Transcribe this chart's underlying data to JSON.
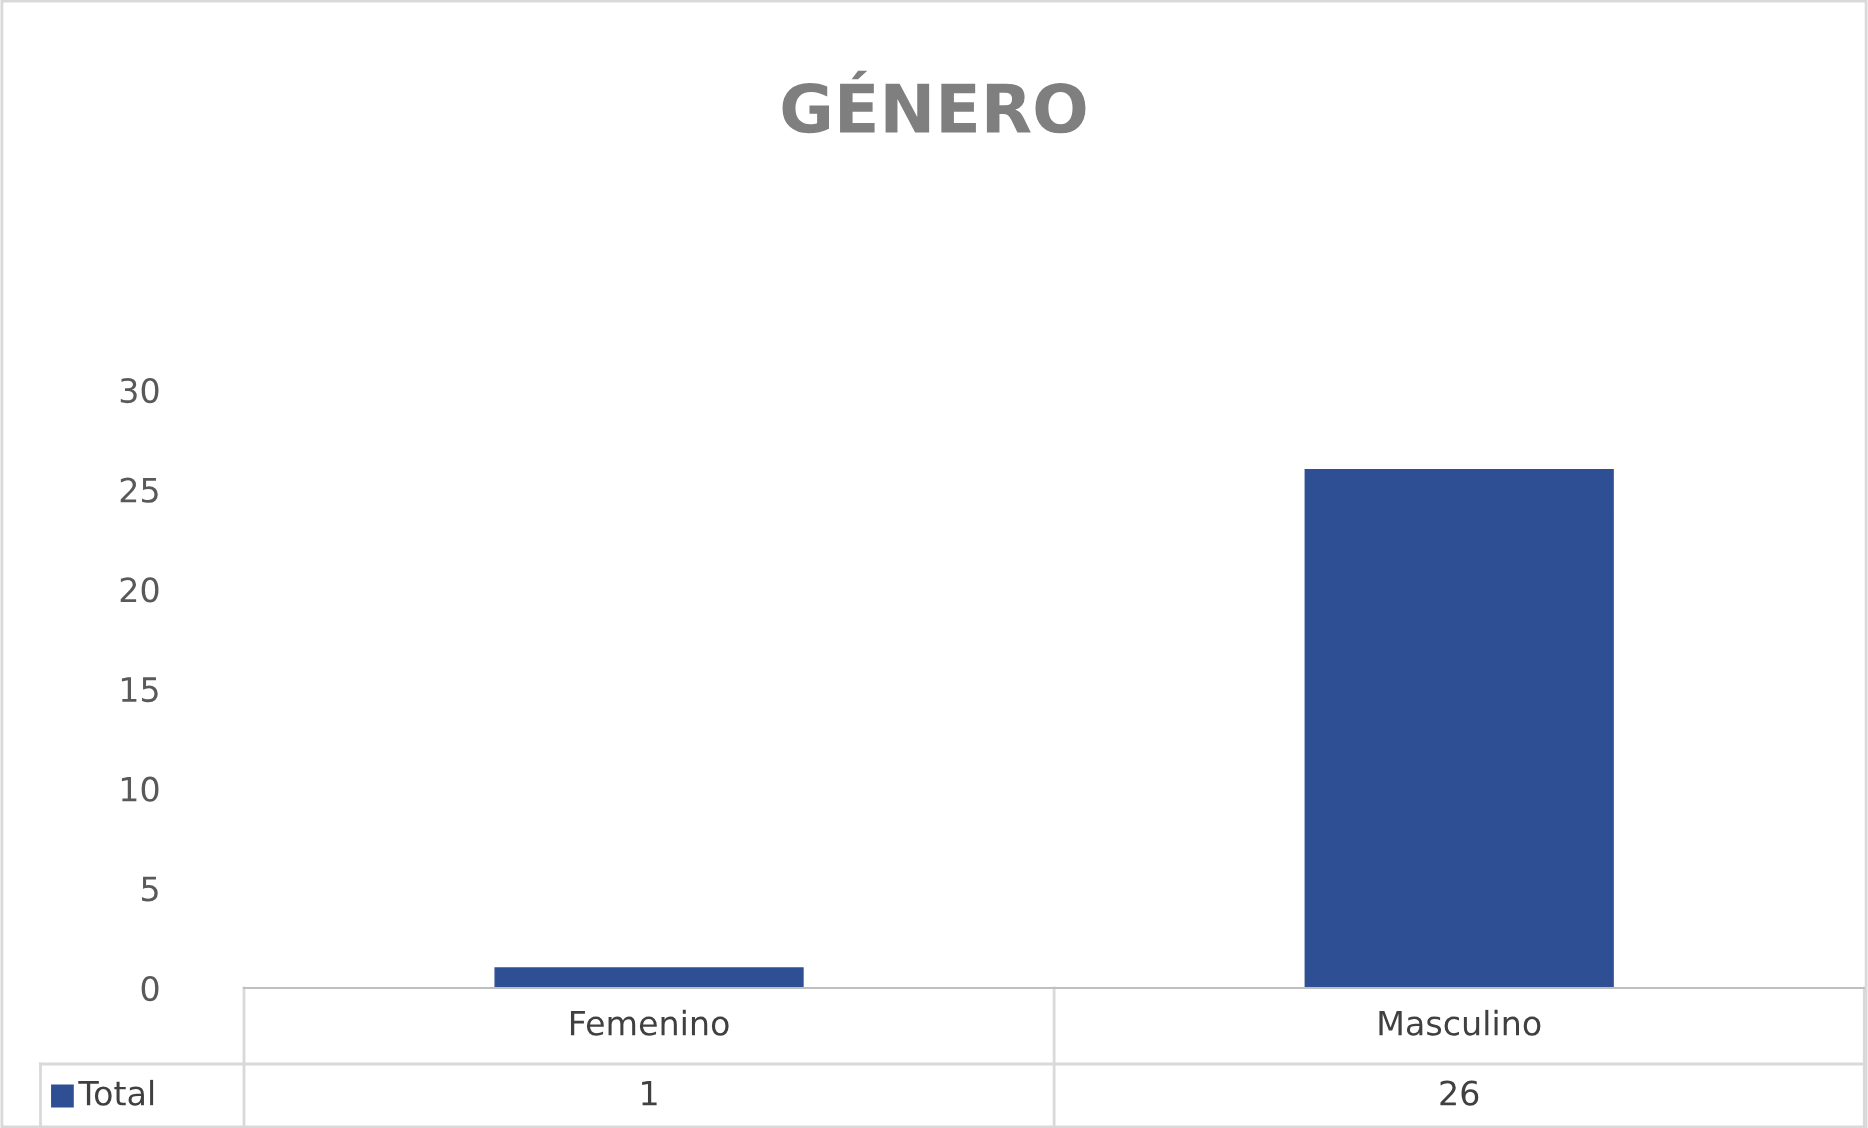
{
  "chart_data": {
    "type": "bar",
    "title": "GÉNERO",
    "categories": [
      "Femenino",
      "Masculino"
    ],
    "series": [
      {
        "name": "Total",
        "color": "#2f4f95",
        "values": [
          1,
          26
        ]
      }
    ],
    "ylim": [
      0,
      30
    ],
    "yticks": [
      0,
      5,
      10,
      15,
      20,
      25,
      30
    ],
    "data_labels": true,
    "grid": false
  }
}
